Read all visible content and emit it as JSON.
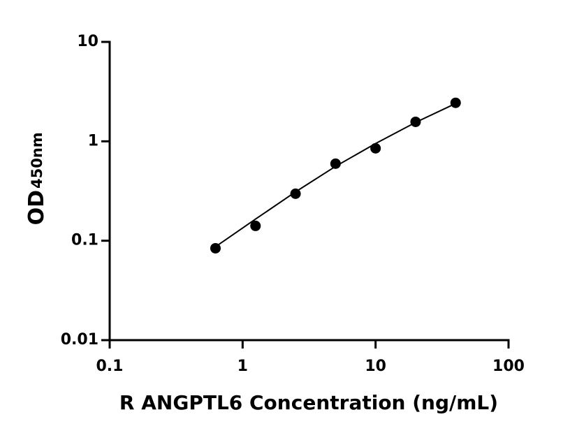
{
  "chart_data": {
    "type": "scatter",
    "x_label": "R ANGPTL6 Concentration (ng/mL)",
    "y_label": "OD",
    "y_label_sub": "450nm",
    "x": [
      0.625,
      1.25,
      2.5,
      5,
      10,
      20,
      40
    ],
    "values": [
      0.084,
      0.141,
      0.297,
      0.596,
      0.85,
      1.57,
      2.44
    ],
    "color": "#000000",
    "fit": {
      "x": [
        0.625,
        1.25,
        2.5,
        5,
        10,
        20,
        40
      ],
      "values": [
        0.087,
        0.165,
        0.31,
        0.56,
        0.95,
        1.55,
        2.4
      ]
    },
    "xscale": "log",
    "yscale": "log",
    "xlim": [
      0.1,
      100
    ],
    "ylim": [
      0.01,
      10
    ],
    "xticks": [
      0.1,
      1,
      10,
      100
    ],
    "yticks": [
      0.01,
      0.1,
      1,
      10
    ],
    "grid": false
  }
}
